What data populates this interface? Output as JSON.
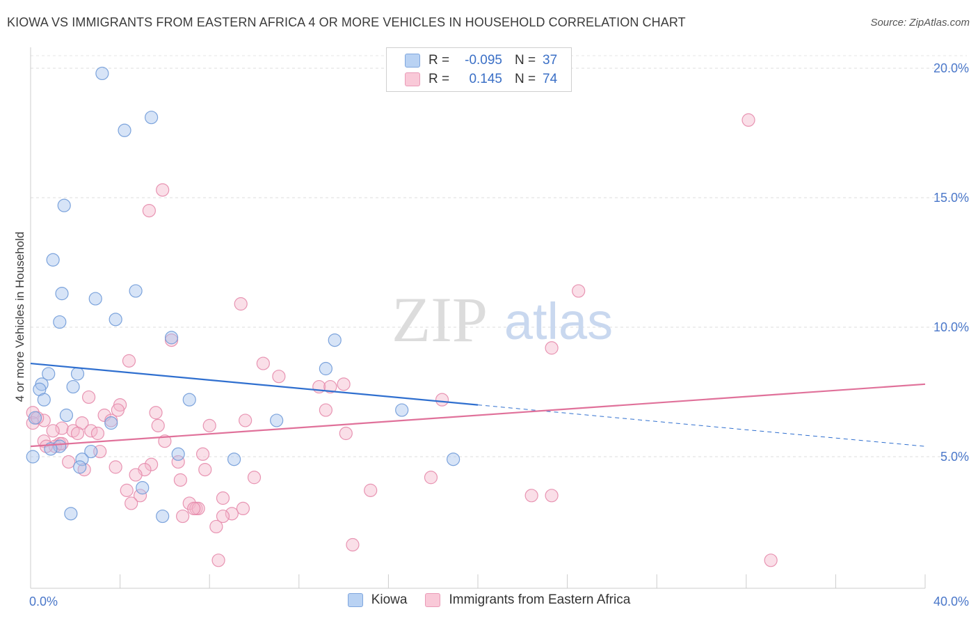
{
  "chart_data": {
    "type": "scatter",
    "title": "KIOWA VS IMMIGRANTS FROM EASTERN AFRICA 4 OR MORE VEHICLES IN HOUSEHOLD CORRELATION CHART",
    "source": "Source: ZipAtlas.com",
    "xlabel": "",
    "ylabel": "4 or more Vehicles in Household",
    "xlim": [
      0,
      40
    ],
    "ylim": [
      0,
      20.5
    ],
    "y_ticks": [
      5,
      10,
      15,
      20
    ],
    "y_tick_labels": [
      "5.0%",
      "10.0%",
      "15.0%",
      "20.0%"
    ],
    "x_tick_labels": [
      "0.0%",
      "40.0%"
    ],
    "watermark": {
      "zip": "ZIP",
      "atlas": "atlas"
    },
    "legend": {
      "rows": [
        {
          "r_label": "R =",
          "r_value": "-0.095",
          "n_label": "N =",
          "n_value": "37"
        },
        {
          "r_label": "R =",
          "r_value": "0.145",
          "n_label": "N =",
          "n_value": "74"
        }
      ]
    },
    "series": [
      {
        "name": "Kiowa",
        "color": "#a7c4ee",
        "stroke": "#6f9ad8",
        "line_color": "#2f6fcf",
        "trend": {
          "x0": 0,
          "y0": 8.6,
          "x1": 20,
          "y1": 7.0,
          "dash_x1": 40,
          "dash_y1": 5.4
        },
        "points": [
          [
            3.2,
            19.8
          ],
          [
            5.4,
            18.1
          ],
          [
            4.2,
            17.6
          ],
          [
            1.5,
            14.7
          ],
          [
            1.0,
            12.6
          ],
          [
            1.4,
            11.3
          ],
          [
            2.9,
            11.1
          ],
          [
            4.7,
            11.4
          ],
          [
            1.3,
            10.2
          ],
          [
            3.8,
            10.3
          ],
          [
            6.3,
            9.6
          ],
          [
            13.6,
            9.5
          ],
          [
            0.8,
            8.2
          ],
          [
            2.1,
            8.2
          ],
          [
            13.2,
            8.4
          ],
          [
            0.5,
            7.8
          ],
          [
            0.4,
            7.6
          ],
          [
            1.9,
            7.7
          ],
          [
            0.6,
            7.2
          ],
          [
            7.1,
            7.2
          ],
          [
            16.6,
            6.8
          ],
          [
            1.6,
            6.6
          ],
          [
            0.2,
            6.5
          ],
          [
            3.6,
            6.3
          ],
          [
            11.0,
            6.4
          ],
          [
            1.3,
            5.4
          ],
          [
            0.9,
            5.3
          ],
          [
            2.7,
            5.2
          ],
          [
            6.6,
            5.1
          ],
          [
            0.1,
            5.0
          ],
          [
            2.3,
            4.9
          ],
          [
            9.1,
            4.9
          ],
          [
            18.9,
            4.9
          ],
          [
            2.2,
            4.6
          ],
          [
            5.0,
            3.8
          ],
          [
            1.8,
            2.8
          ],
          [
            5.9,
            2.7
          ]
        ]
      },
      {
        "name": "Immigrants from Eastern Africa",
        "color": "#f4b9cc",
        "stroke": "#e68aab",
        "line_color": "#e0719a",
        "trend": {
          "x0": 0,
          "y0": 5.4,
          "x1": 40,
          "y1": 7.8
        },
        "points": [
          [
            32.1,
            18.0
          ],
          [
            5.9,
            15.3
          ],
          [
            5.3,
            14.5
          ],
          [
            24.5,
            11.4
          ],
          [
            9.4,
            10.9
          ],
          [
            6.3,
            9.5
          ],
          [
            23.3,
            9.2
          ],
          [
            4.4,
            8.7
          ],
          [
            10.4,
            8.6
          ],
          [
            11.1,
            8.1
          ],
          [
            12.9,
            7.7
          ],
          [
            14.0,
            7.8
          ],
          [
            13.4,
            7.7
          ],
          [
            18.4,
            7.2
          ],
          [
            2.6,
            7.3
          ],
          [
            4.0,
            7.0
          ],
          [
            3.9,
            6.8
          ],
          [
            5.6,
            6.7
          ],
          [
            13.2,
            6.8
          ],
          [
            3.3,
            6.6
          ],
          [
            0.1,
            6.7
          ],
          [
            3.6,
            6.4
          ],
          [
            2.3,
            6.3
          ],
          [
            0.6,
            6.4
          ],
          [
            9.6,
            6.4
          ],
          [
            5.7,
            6.2
          ],
          [
            8.0,
            6.2
          ],
          [
            1.4,
            6.1
          ],
          [
            2.7,
            6.0
          ],
          [
            1.9,
            6.0
          ],
          [
            2.1,
            5.9
          ],
          [
            1.0,
            6.0
          ],
          [
            3.0,
            5.9
          ],
          [
            14.1,
            5.9
          ],
          [
            0.6,
            5.6
          ],
          [
            6.0,
            5.6
          ],
          [
            1.3,
            5.5
          ],
          [
            1.1,
            5.4
          ],
          [
            0.7,
            5.4
          ],
          [
            1.4,
            5.5
          ],
          [
            3.1,
            5.2
          ],
          [
            7.7,
            5.1
          ],
          [
            1.7,
            4.8
          ],
          [
            6.6,
            4.8
          ],
          [
            5.4,
            4.7
          ],
          [
            3.8,
            4.6
          ],
          [
            5.1,
            4.5
          ],
          [
            2.4,
            4.5
          ],
          [
            7.8,
            4.5
          ],
          [
            4.7,
            4.3
          ],
          [
            10.0,
            4.2
          ],
          [
            17.9,
            4.2
          ],
          [
            6.7,
            4.1
          ],
          [
            4.3,
            3.7
          ],
          [
            15.2,
            3.7
          ],
          [
            22.4,
            3.5
          ],
          [
            23.3,
            3.5
          ],
          [
            4.9,
            3.5
          ],
          [
            8.6,
            3.4
          ],
          [
            4.5,
            3.2
          ],
          [
            7.1,
            3.2
          ],
          [
            7.4,
            3.0
          ],
          [
            9.5,
            3.0
          ],
          [
            7.5,
            3.0
          ],
          [
            9.0,
            2.8
          ],
          [
            8.6,
            2.7
          ],
          [
            6.8,
            2.7
          ],
          [
            8.3,
            2.3
          ],
          [
            14.4,
            1.6
          ],
          [
            8.4,
            1.0
          ],
          [
            33.1,
            1.0
          ],
          [
            7.3,
            3.0
          ],
          [
            0.1,
            6.3
          ],
          [
            0.3,
            6.5
          ]
        ]
      }
    ]
  }
}
